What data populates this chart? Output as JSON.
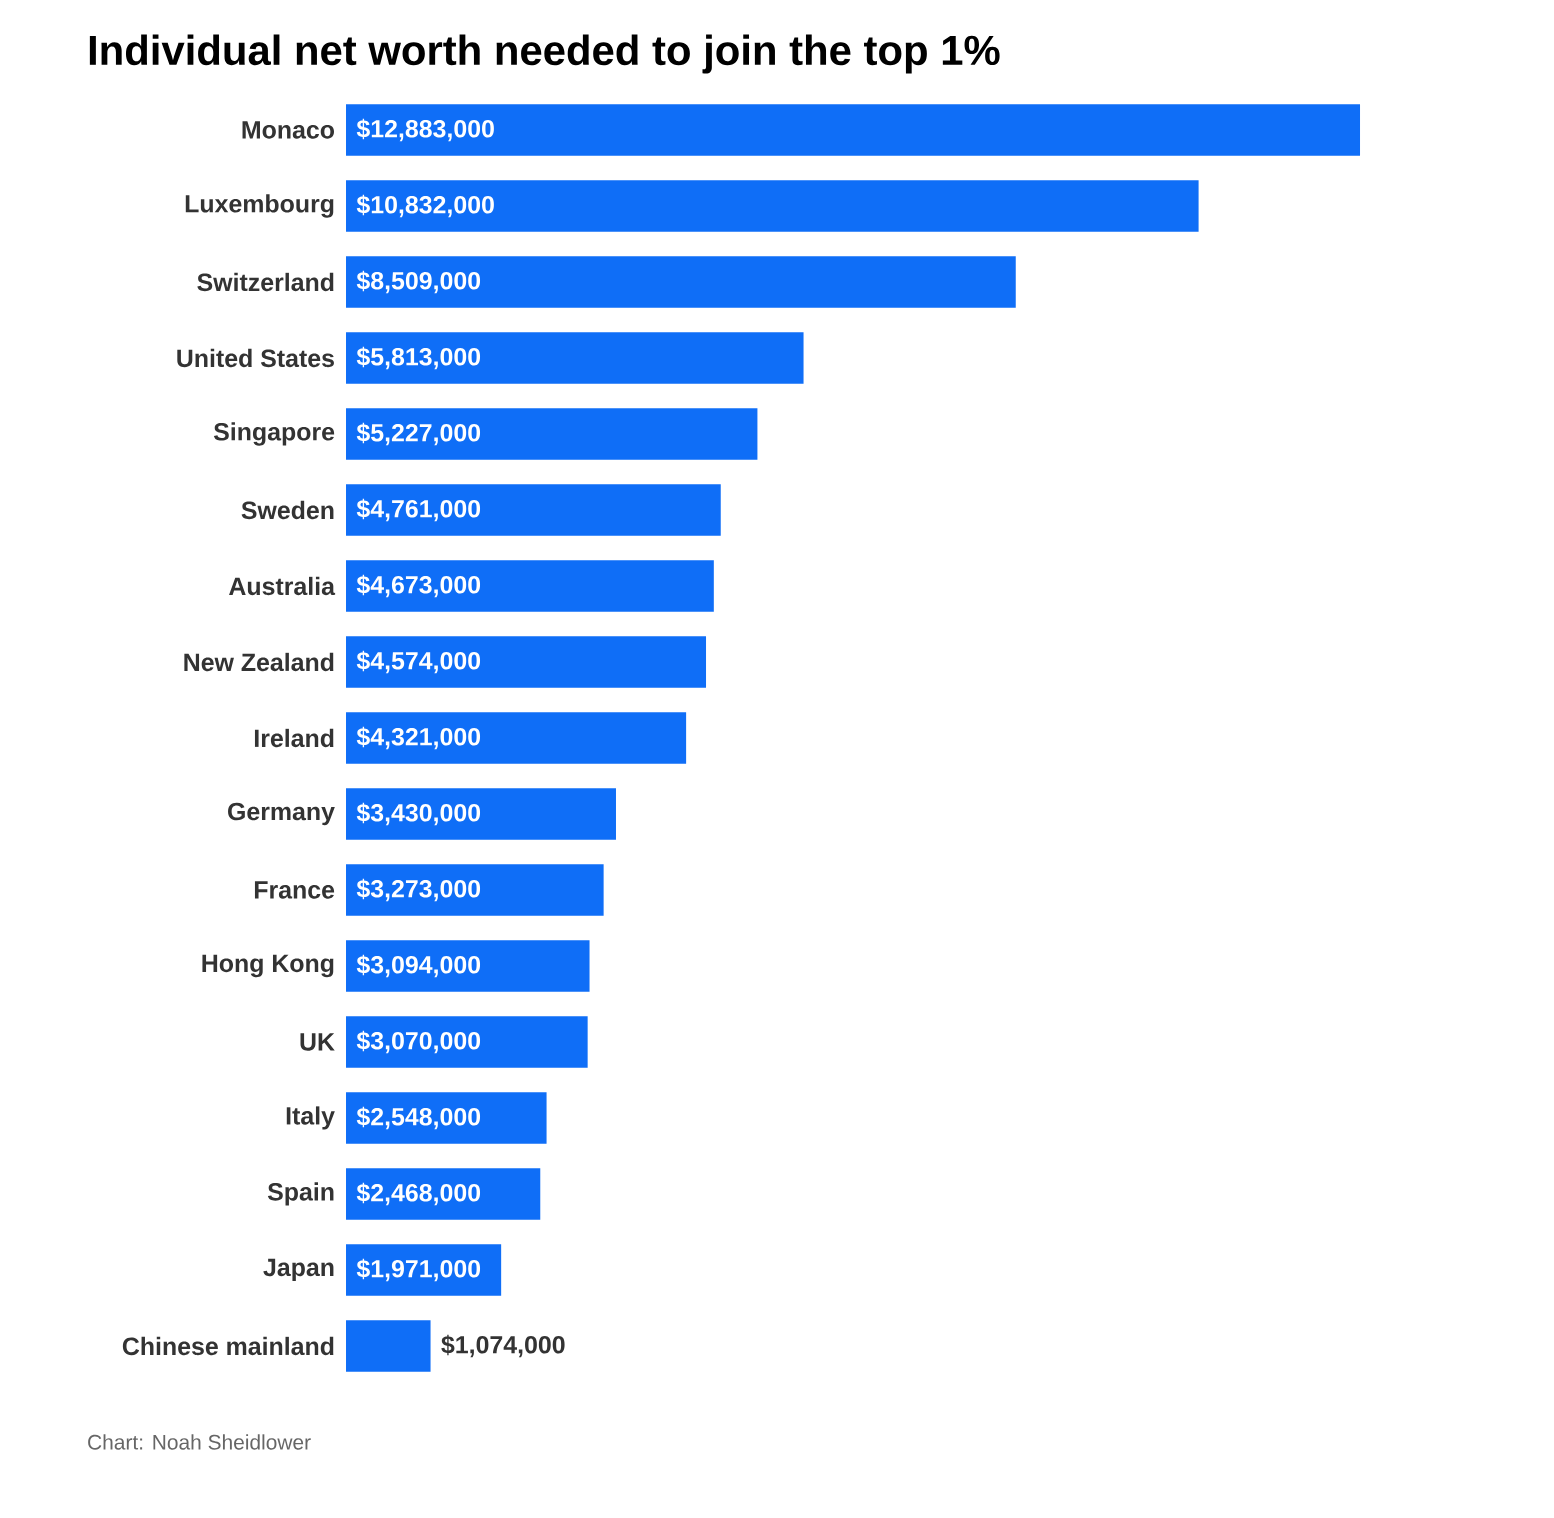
{
  "chart_data": {
    "type": "bar",
    "orientation": "horizontal",
    "title": "Individual net worth needed to join the top 1%",
    "categories": [
      "Monaco",
      "Luxembourg",
      "Switzerland",
      "United States",
      "Singapore",
      "Sweden",
      "Australia",
      "New Zealand",
      "Ireland",
      "Germany",
      "France",
      "Hong Kong",
      "UK",
      "Italy",
      "Spain",
      "Japan",
      "Chinese mainland"
    ],
    "values": [
      12883000,
      10832000,
      8509000,
      5813000,
      5227000,
      4761000,
      4673000,
      4574000,
      4321000,
      3430000,
      3273000,
      3094000,
      3070000,
      2548000,
      2468000,
      1971000,
      1074000
    ],
    "value_labels": [
      "$12,883,000",
      "$10,832,000",
      "$8,509,000",
      "$5,813,000",
      "$5,227,000",
      "$4,761,000",
      "$4,673,000",
      "$4,574,000",
      "$4,321,000",
      "$3,430,000",
      "$3,273,000",
      "$3,094,000",
      "$3,070,000",
      "$2,548,000",
      "$2,468,000",
      "$1,971,000",
      "$1,074,000"
    ],
    "color": "#0f6ef7",
    "annotations": [
      "Chart: Noah Sheidlower"
    ]
  }
}
